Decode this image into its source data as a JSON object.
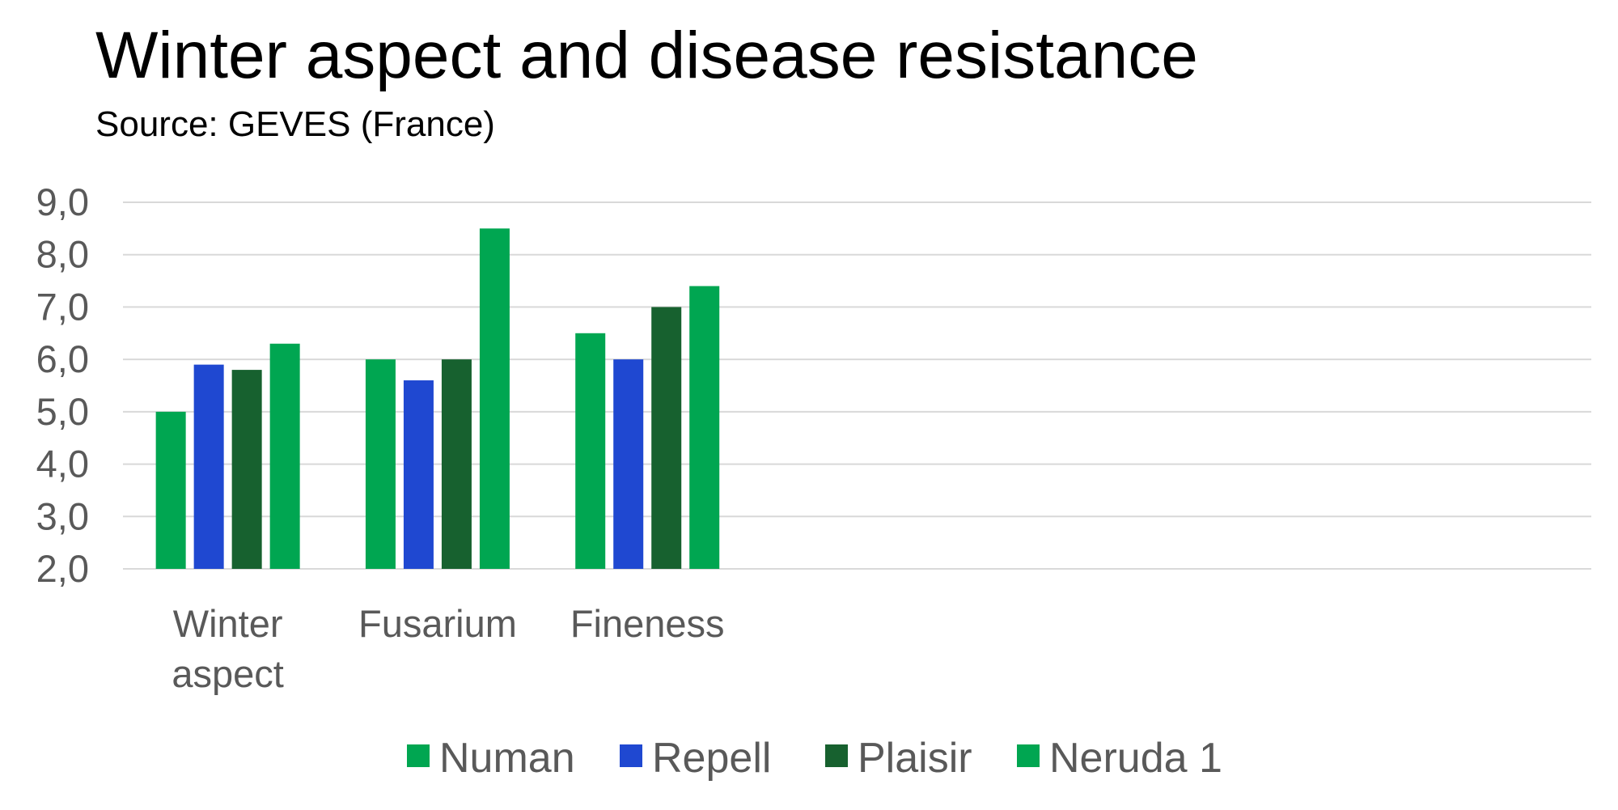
{
  "chart_data": {
    "type": "bar",
    "title": "Winter aspect and disease resistance",
    "subtitle": "Source: GEVES (France)",
    "categories": [
      [
        "Winter",
        "aspect"
      ],
      [
        "Fusarium"
      ],
      [
        "Fineness"
      ],
      [
        ""
      ],
      [
        ""
      ],
      [
        ""
      ],
      [
        ""
      ]
    ],
    "series": [
      {
        "name": "Numan",
        "color": "#00A651",
        "values": [
          5.0,
          6.0,
          6.5,
          null,
          null,
          null,
          null
        ]
      },
      {
        "name": "Repell",
        "color": "#1F48D1",
        "values": [
          5.9,
          5.6,
          6.0,
          null,
          null,
          null,
          null
        ]
      },
      {
        "name": "Plaisir",
        "color": "#17612F",
        "values": [
          5.8,
          6.0,
          7.0,
          null,
          null,
          null,
          null
        ]
      },
      {
        "name": "Neruda 1",
        "color": "#00A651",
        "values": [
          6.3,
          8.5,
          7.4,
          null,
          null,
          null,
          null
        ]
      }
    ],
    "yticks": [
      "9,0",
      "8,0",
      "7,0",
      "6,0",
      "5,0",
      "4,0",
      "3,0",
      "2,0"
    ],
    "ylim": [
      2,
      9
    ],
    "grid": true,
    "legend": "bottom",
    "colors": {
      "grid": "#D9D9D9",
      "text": "#595959"
    }
  }
}
